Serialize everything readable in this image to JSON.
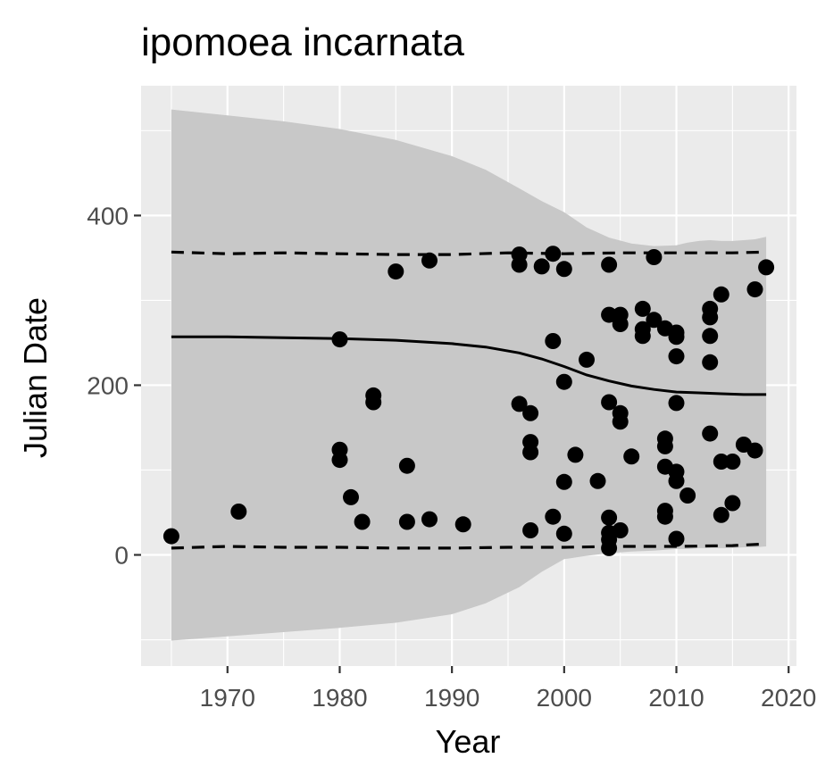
{
  "chart_data": {
    "type": "scatter",
    "title": "ipomoea incarnata",
    "xlabel": "Year",
    "ylabel": "Julian Date",
    "xlim": [
      1962.3,
      2020.7
    ],
    "ylim": [
      -131,
      553
    ],
    "x_ticks": [
      1970,
      1980,
      1990,
      2000,
      2010,
      2020
    ],
    "x_tick_labels": [
      "1970",
      "1980",
      "1990",
      "2000",
      "2010",
      "2020"
    ],
    "y_ticks": [
      0,
      200,
      400
    ],
    "y_tick_labels": [
      "0",
      "200",
      "400"
    ],
    "grid": true,
    "panel_background": "#ebebeb",
    "colors": {
      "points": "#000000",
      "ribbon": "#c8c8c8",
      "fit_line": "#000000",
      "dashed_bounds": "#000000"
    },
    "points": [
      [
        1965,
        22
      ],
      [
        1971,
        51
      ],
      [
        1980,
        254
      ],
      [
        1980,
        124
      ],
      [
        1980,
        112
      ],
      [
        1981,
        68
      ],
      [
        1982,
        39
      ],
      [
        1983,
        188
      ],
      [
        1983,
        180
      ],
      [
        1985,
        334
      ],
      [
        1986,
        105
      ],
      [
        1986,
        39
      ],
      [
        1988,
        347
      ],
      [
        1988,
        42
      ],
      [
        1991,
        36
      ],
      [
        1996,
        354
      ],
      [
        1996,
        342
      ],
      [
        1996,
        178
      ],
      [
        1997,
        167
      ],
      [
        1997,
        133
      ],
      [
        1997,
        121
      ],
      [
        1997,
        29
      ],
      [
        1998,
        340
      ],
      [
        1999,
        355
      ],
      [
        1999,
        252
      ],
      [
        1999,
        45
      ],
      [
        2000,
        337
      ],
      [
        2000,
        204
      ],
      [
        2000,
        86
      ],
      [
        2000,
        25
      ],
      [
        2001,
        118
      ],
      [
        2002,
        230
      ],
      [
        2003,
        87
      ],
      [
        2004,
        342
      ],
      [
        2004,
        283
      ],
      [
        2004,
        180
      ],
      [
        2004,
        44
      ],
      [
        2004,
        26
      ],
      [
        2004,
        18
      ],
      [
        2004,
        8
      ],
      [
        2005,
        283
      ],
      [
        2005,
        272
      ],
      [
        2005,
        167
      ],
      [
        2005,
        157
      ],
      [
        2005,
        29
      ],
      [
        2006,
        116
      ],
      [
        2007,
        290
      ],
      [
        2007,
        266
      ],
      [
        2007,
        258
      ],
      [
        2008,
        351
      ],
      [
        2008,
        277
      ],
      [
        2009,
        267
      ],
      [
        2009,
        137
      ],
      [
        2009,
        128
      ],
      [
        2009,
        104
      ],
      [
        2009,
        52
      ],
      [
        2009,
        45
      ],
      [
        2010,
        262
      ],
      [
        2010,
        257
      ],
      [
        2010,
        234
      ],
      [
        2010,
        179
      ],
      [
        2010,
        98
      ],
      [
        2010,
        87
      ],
      [
        2010,
        19
      ],
      [
        2011,
        70
      ],
      [
        2013,
        290
      ],
      [
        2013,
        280
      ],
      [
        2013,
        258
      ],
      [
        2013,
        227
      ],
      [
        2013,
        143
      ],
      [
        2014,
        307
      ],
      [
        2014,
        110
      ],
      [
        2014,
        47
      ],
      [
        2015,
        110
      ],
      [
        2015,
        61
      ],
      [
        2016,
        130
      ],
      [
        2017,
        313
      ],
      [
        2017,
        123
      ],
      [
        2018,
        339
      ]
    ],
    "fit_line": {
      "x": [
        1965,
        1970,
        1975,
        1980,
        1985,
        1990,
        1993,
        1996,
        1998,
        2000,
        2002,
        2004,
        2006,
        2008,
        2010,
        2012,
        2014,
        2016,
        2018
      ],
      "y": [
        257,
        257,
        256,
        255,
        253,
        249,
        245,
        238,
        231,
        222,
        212,
        205,
        199,
        195,
        192,
        191,
        190,
        189,
        189
      ]
    },
    "ribbon": {
      "x": [
        1965,
        1970,
        1975,
        1980,
        1985,
        1990,
        1993,
        1996,
        1998,
        2000,
        2002,
        2004,
        2006,
        2008,
        2010,
        2011,
        2012,
        2013,
        2014,
        2015,
        2016,
        2017,
        2018
      ],
      "upper": [
        525,
        518,
        511,
        502,
        489,
        470,
        454,
        432,
        417,
        404,
        386,
        374,
        367,
        364,
        365,
        368,
        370,
        371,
        370,
        370,
        371,
        372,
        375
      ],
      "lower": [
        -101,
        -96,
        -91,
        -86,
        -80,
        -70,
        -57,
        -38,
        -20,
        -5,
        -1,
        2,
        4,
        5,
        7,
        7,
        8,
        8,
        8,
        8,
        9,
        9,
        10
      ]
    },
    "dashed_upper": {
      "x": [
        1965,
        1970,
        1975,
        1980,
        1985,
        1990,
        1995,
        2000,
        2005,
        2010,
        2015,
        2018
      ],
      "y": [
        357,
        355,
        356,
        355,
        354,
        354,
        356,
        355,
        356,
        356,
        356,
        357
      ]
    },
    "dashed_lower": {
      "x": [
        1965,
        1970,
        1975,
        1980,
        1985,
        1990,
        1995,
        2000,
        2005,
        2010,
        2015,
        2018
      ],
      "y": [
        8,
        10,
        9,
        9,
        8,
        8,
        9,
        9,
        10,
        10,
        11,
        13
      ]
    }
  }
}
